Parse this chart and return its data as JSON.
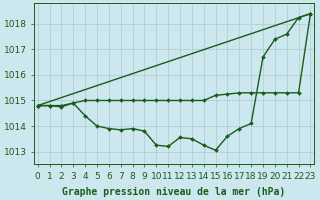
{
  "title": "Graphe pression niveau de la mer (hPa)",
  "background_color": "#cce8ee",
  "grid_color": "#aacccc",
  "line_color": "#1a5c1a",
  "x_min": 0,
  "x_max": 23,
  "y_min": 1012.5,
  "y_max": 1018.8,
  "yticks": [
    1013,
    1014,
    1015,
    1016,
    1017,
    1018
  ],
  "series1": [
    1014.8,
    1014.8,
    1014.75,
    1014.9,
    1014.4,
    1014.0,
    1013.9,
    1013.85,
    1013.9,
    1013.8,
    1013.25,
    1013.2,
    1013.55,
    1013.5,
    1013.25,
    1013.05,
    1013.6,
    1013.9,
    1014.1,
    1016.7,
    1017.4,
    1017.6,
    1018.25,
    1018.4
  ],
  "series2": [
    1014.8,
    1014.8,
    1014.8,
    1014.9,
    1015.0,
    1015.0,
    1015.0,
    1015.0,
    1015.0,
    1015.0,
    1015.0,
    1015.0,
    1015.0,
    1015.0,
    1015.0,
    1015.2,
    1015.25,
    1015.3,
    1015.3,
    1015.3,
    1015.3,
    1015.3,
    1015.3,
    1018.4
  ],
  "series3_x": [
    0,
    23
  ],
  "series3_y": [
    1014.8,
    1018.4
  ],
  "marker_size": 2.0,
  "line_width": 1.0,
  "xlabel_fontsize": 6.5,
  "ylabel_fontsize": 6.5,
  "title_fontsize": 7.0
}
